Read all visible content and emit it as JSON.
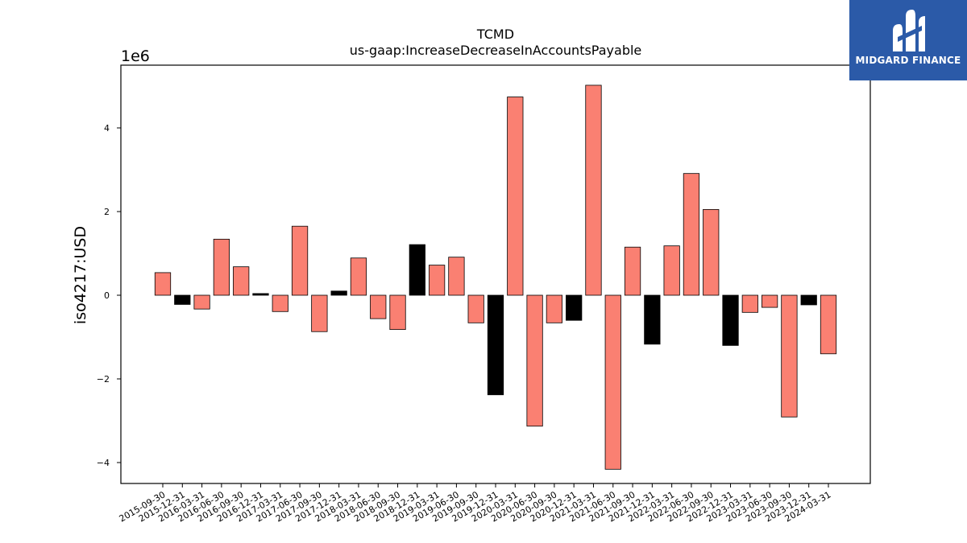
{
  "logo": {
    "text": "MIDGARD FINANCE",
    "icon": "midgard-m-logo-icon",
    "color": "#2b5aa8"
  },
  "chart_data": {
    "type": "bar",
    "title": "TCMD",
    "subtitle": "us-gaap:IncreaseDecreaseInAccountsPayable",
    "ylabel": "iso4217:USD",
    "y_offset_label": "1e6",
    "ylim": [
      -4500000,
      5500000
    ],
    "yticks": [
      -4000000,
      -2000000,
      0,
      2000000,
      4000000
    ],
    "ytick_labels": [
      "−4",
      "−2",
      "0",
      "2",
      "4"
    ],
    "colors": {
      "salmon": "#fa8072",
      "black": "#000000"
    },
    "categories": [
      "2015-09-30",
      "2015-12-31",
      "2016-03-31",
      "2016-06-30",
      "2016-09-30",
      "2016-12-31",
      "2017-03-31",
      "2017-06-30",
      "2017-09-30",
      "2017-12-31",
      "2018-03-31",
      "2018-06-30",
      "2018-09-30",
      "2018-12-31",
      "2019-03-31",
      "2019-06-30",
      "2019-09-30",
      "2019-12-31",
      "2020-03-31",
      "2020-06-30",
      "2020-09-30",
      "2020-12-31",
      "2021-03-31",
      "2021-06-30",
      "2021-09-30",
      "2021-12-31",
      "2022-03-31",
      "2022-06-30",
      "2022-09-30",
      "2022-12-31",
      "2023-03-31",
      "2023-06-30",
      "2023-09-30",
      "2023-12-31",
      "2024-03-31"
    ],
    "values": [
      540000,
      -220000,
      -330000,
      1340000,
      680000,
      40000,
      -390000,
      1650000,
      -870000,
      100000,
      890000,
      -560000,
      -820000,
      1210000,
      720000,
      910000,
      -660000,
      -2380000,
      4740000,
      -3130000,
      -660000,
      -600000,
      5020000,
      -4160000,
      1150000,
      -1170000,
      1180000,
      2910000,
      2050000,
      -1200000,
      -410000,
      -290000,
      -2910000,
      -230000,
      -1400000
    ],
    "bar_colors": [
      "salmon",
      "black",
      "salmon",
      "salmon",
      "salmon",
      "black",
      "salmon",
      "salmon",
      "salmon",
      "black",
      "salmon",
      "salmon",
      "salmon",
      "black",
      "salmon",
      "salmon",
      "salmon",
      "black",
      "salmon",
      "salmon",
      "salmon",
      "black",
      "salmon",
      "salmon",
      "salmon",
      "black",
      "salmon",
      "salmon",
      "salmon",
      "black",
      "salmon",
      "salmon",
      "salmon",
      "black",
      "salmon"
    ]
  }
}
